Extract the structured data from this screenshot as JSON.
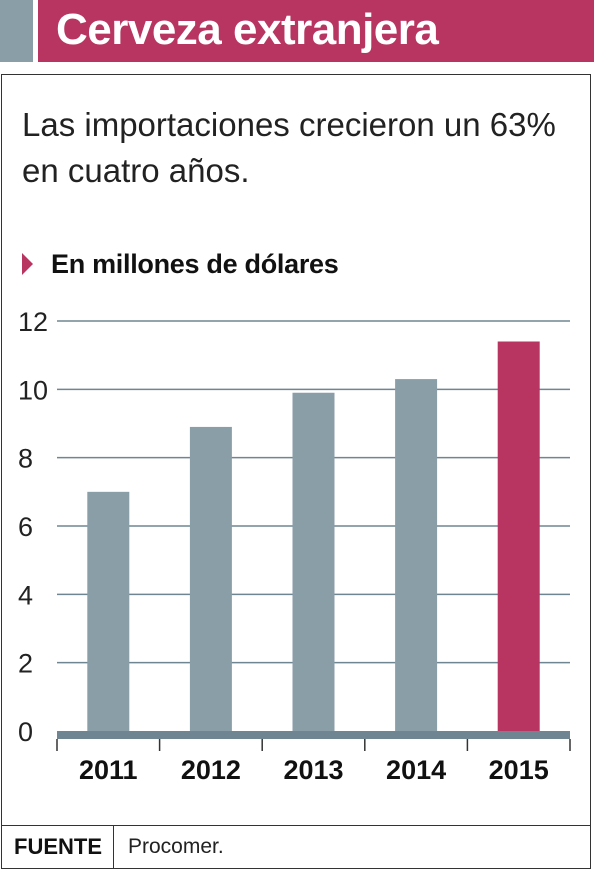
{
  "header": {
    "title": "Cerveza extranjera"
  },
  "subtitle": "Las importaciones crecieron un 63% en cuatro años.",
  "units_label": "En millones de dólares",
  "footer": {
    "source_label": "FUENTE",
    "source_value": "Procomer."
  },
  "colors": {
    "accent": "#b83561",
    "bar": "#8a9ea8",
    "highlight_bar": "#b83561",
    "baseline": "#6f8591"
  },
  "chart_data": {
    "type": "bar",
    "title": "Cerveza extranjera",
    "subtitle": "Las importaciones crecieron un 63% en cuatro años.",
    "ylabel": "En millones de dólares",
    "xlabel": "",
    "categories": [
      "2011",
      "2012",
      "2013",
      "2014",
      "2015"
    ],
    "values": [
      7.0,
      8.9,
      9.9,
      10.3,
      11.4
    ],
    "highlighted": [
      "2015"
    ],
    "ylim": [
      0,
      12
    ],
    "yticks": [
      0,
      2,
      4,
      6,
      8,
      10,
      12
    ],
    "grid": true,
    "legend": "none"
  }
}
